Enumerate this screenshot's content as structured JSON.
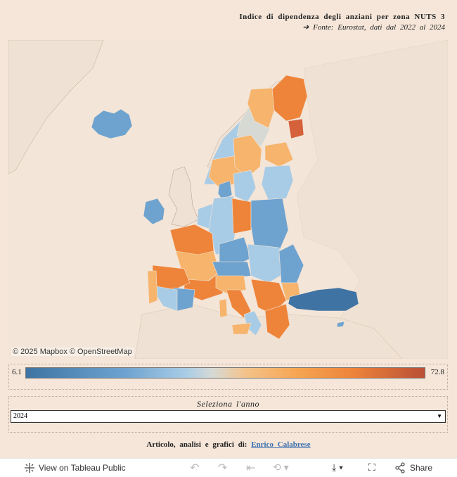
{
  "header": {
    "title": "Indice di dipendenza degli anziani per zona NUTS 3",
    "subtitle": "➔ Fonte:  Eurostat, dati dal 2022 al 2024"
  },
  "map": {
    "attribution": "© 2025 Mapbox  © OpenStreetMap",
    "colors": {
      "water": "#f3e5d8",
      "land_other": "#efe1d3",
      "dark_blue": "#3f73a3",
      "blue": "#6fa3cf",
      "light_blue": "#a9cce6",
      "neutral": "#d7d9d4",
      "light_orange": "#f6b46c",
      "orange": "#ee843a",
      "dark_orange": "#d5623a"
    }
  },
  "legend": {
    "min": "6.1",
    "max": "72.8"
  },
  "year_filter": {
    "title": "Seleziona l'anno",
    "selected": "2024"
  },
  "credit": {
    "prefix": "Articolo, analisi e grafici di:",
    "author": "Enrico Calabrese"
  },
  "toolbar": {
    "view_label": "View on Tableau Public",
    "share_label": "Share"
  }
}
